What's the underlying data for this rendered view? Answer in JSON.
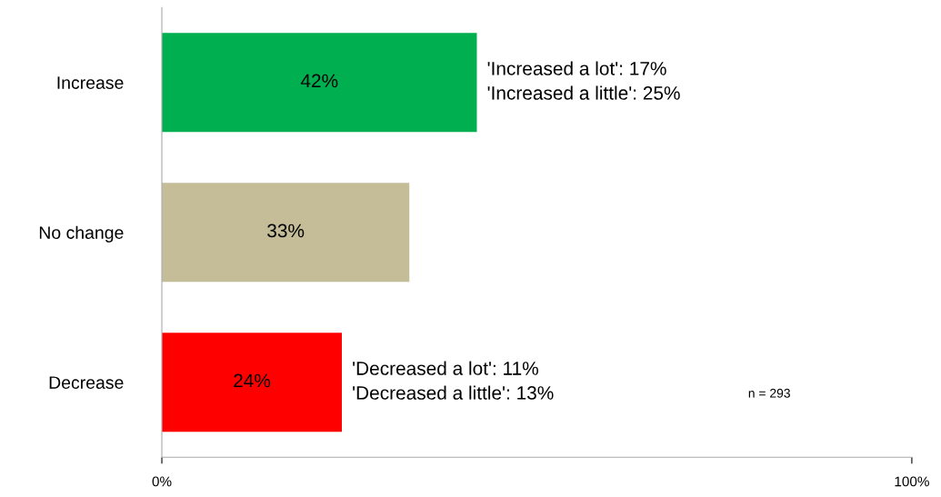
{
  "chart_data": {
    "type": "bar",
    "orientation": "horizontal",
    "categories": [
      "Increase",
      "No change",
      "Decrease"
    ],
    "values": [
      42,
      33,
      24
    ],
    "colors": [
      "#00b050",
      "#c4bd97",
      "#ff0000"
    ],
    "value_labels": [
      "42%",
      "33%",
      "24%"
    ],
    "xlim": [
      0,
      100
    ],
    "xticks": [
      {
        "value": 0,
        "label": "0%"
      },
      {
        "value": 100,
        "label": "100%"
      }
    ],
    "grid": false,
    "legend": false,
    "annotations": [
      {
        "text": "'Increased a lot': 17%\n'Increased a little': 25%",
        "x": 42,
        "y": "Increase"
      },
      {
        "text": "'Decreased a lot': 11%\n'Decreased a little': 13%",
        "x": 24,
        "y": "Decrease"
      },
      "n = 293"
    ]
  }
}
